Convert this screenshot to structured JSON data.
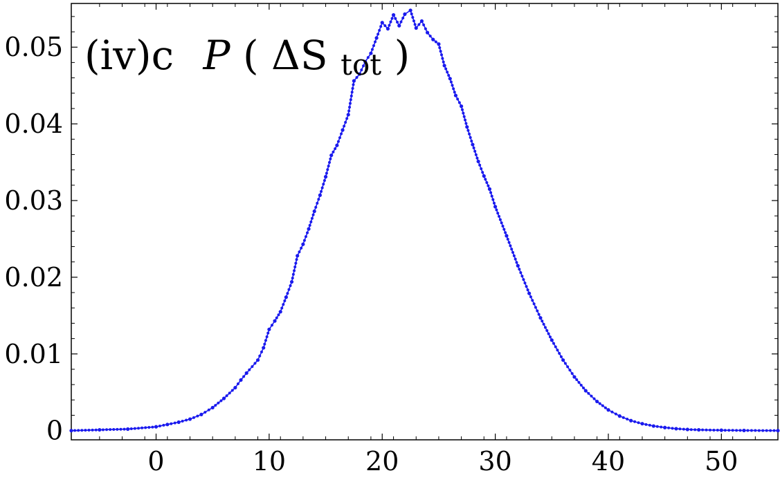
{
  "chart_data": {
    "type": "line",
    "title_parts": {
      "label": "(iv)c",
      "symbol": "P",
      "open_paren": "(",
      "delta_s": "ΔS",
      "subscript": "tot",
      "close_paren": ")"
    },
    "xlabel": "",
    "ylabel": "",
    "xlim": [
      -7.5,
      55
    ],
    "ylim": [
      -0.0012,
      0.0557
    ],
    "x_ticks": [
      0,
      10,
      20,
      30,
      40,
      50
    ],
    "x_tick_labels": [
      "0",
      "10",
      "20",
      "30",
      "40",
      "50"
    ],
    "y_ticks": [
      0,
      0.01,
      0.02,
      0.03,
      0.04,
      0.05
    ],
    "y_tick_labels": [
      "0",
      "0.01",
      "0.02",
      "0.03",
      "0.04",
      "0.05"
    ],
    "grid": false,
    "series_color": "#1a1aee",
    "series": [
      {
        "marker": "dot",
        "x": [
          -7.5,
          -5,
          -2.5,
          0,
          1,
          2,
          3,
          4,
          5,
          6,
          7,
          7.5,
          8,
          9,
          9.5,
          10,
          10.5,
          11,
          11.5,
          12,
          12.5,
          13,
          13.5,
          14,
          14.5,
          15,
          15.5,
          16,
          16.5,
          17,
          17.5,
          18,
          18.5,
          19,
          19.5,
          20,
          20.5,
          21,
          21.5,
          22,
          22.5,
          23,
          23.5,
          24,
          24.5,
          25,
          25.5,
          26,
          26.5,
          27,
          27.5,
          28,
          28.5,
          29,
          29.5,
          30,
          31,
          32,
          33,
          34,
          35,
          36,
          37,
          38,
          39,
          40,
          41,
          42,
          43,
          44,
          45,
          46,
          47,
          48,
          50,
          52,
          55
        ],
        "y": [
          0.0,
          0.0001,
          0.0002,
          0.0005,
          0.0008,
          0.0011,
          0.0015,
          0.0021,
          0.003,
          0.0042,
          0.0056,
          0.0066,
          0.0075,
          0.0092,
          0.0108,
          0.0132,
          0.0143,
          0.0155,
          0.0174,
          0.0194,
          0.0228,
          0.0243,
          0.0263,
          0.0286,
          0.0307,
          0.0331,
          0.0359,
          0.0372,
          0.0392,
          0.0412,
          0.0456,
          0.0465,
          0.0481,
          0.0492,
          0.0512,
          0.0532,
          0.0524,
          0.0542,
          0.0528,
          0.0543,
          0.0548,
          0.0525,
          0.0534,
          0.0519,
          0.051,
          0.0504,
          0.0476,
          0.0459,
          0.0437,
          0.0423,
          0.0396,
          0.0373,
          0.0351,
          0.0332,
          0.0315,
          0.0292,
          0.0254,
          0.0215,
          0.0179,
          0.0147,
          0.0118,
          0.0092,
          0.007,
          0.0052,
          0.0038,
          0.0027,
          0.0019,
          0.0013,
          0.0009,
          0.0006,
          0.0004,
          0.00025,
          0.00015,
          0.0001,
          5e-05,
          2e-05,
          0.0
        ]
      }
    ]
  }
}
